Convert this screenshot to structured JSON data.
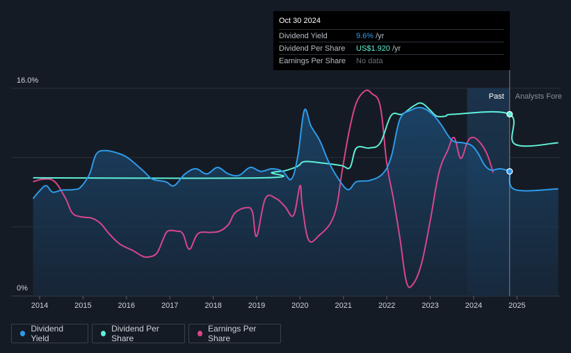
{
  "tooltip": {
    "date": "Oct 30 2024",
    "rows": [
      {
        "label": "Dividend Yield",
        "value": "9.6%",
        "unit": "/yr",
        "color": "#2e9bea"
      },
      {
        "label": "Dividend Per Share",
        "value": "US$1.920",
        "unit": "/yr",
        "color": "#5ff0d8"
      },
      {
        "label": "Earnings Per Share",
        "value": "No data",
        "unit": "",
        "color": "#6a7079"
      }
    ]
  },
  "legend": [
    {
      "label": "Dividend Yield",
      "color": "#2e9bea"
    },
    {
      "label": "Dividend Per Share",
      "color": "#5ff0d8"
    },
    {
      "label": "Earnings Per Share",
      "color": "#d9468c"
    }
  ],
  "chart_data": {
    "type": "line",
    "title": "",
    "xlabel": "",
    "ylabel": "",
    "y_tick_labels": [
      "16.0%",
      "0%"
    ],
    "ylim": [
      0,
      16
    ],
    "xlim": [
      2013.6,
      2025.95
    ],
    "x_ticks": [
      2014,
      2015,
      2016,
      2017,
      2018,
      2019,
      2020,
      2021,
      2022,
      2023,
      2024,
      2025
    ],
    "past_label": "Past",
    "forecast_label": "Analysts Fore",
    "past_region": [
      2023.85,
      2024.83
    ],
    "colors": {
      "yield": "#2e9bea",
      "dps": "#5ff0d8",
      "eps": "#d9468c"
    },
    "series": [
      {
        "name": "Dividend Yield",
        "points": [
          [
            2013.85,
            7.5
          ],
          [
            2014.0,
            8.1
          ],
          [
            2014.15,
            8.5
          ],
          [
            2014.3,
            8.0
          ],
          [
            2014.5,
            8.15
          ],
          [
            2014.8,
            8.2
          ],
          [
            2014.95,
            8.4
          ],
          [
            2015.15,
            9.4
          ],
          [
            2015.3,
            10.9
          ],
          [
            2015.5,
            11.2
          ],
          [
            2015.8,
            11.0
          ],
          [
            2016.05,
            10.6
          ],
          [
            2016.4,
            9.6
          ],
          [
            2016.6,
            9.0
          ],
          [
            2016.9,
            8.8
          ],
          [
            2017.1,
            8.5
          ],
          [
            2017.35,
            9.4
          ],
          [
            2017.6,
            9.8
          ],
          [
            2017.85,
            9.4
          ],
          [
            2018.1,
            9.9
          ],
          [
            2018.35,
            9.4
          ],
          [
            2018.6,
            9.3
          ],
          [
            2018.85,
            9.9
          ],
          [
            2019.1,
            9.6
          ],
          [
            2019.35,
            9.8
          ],
          [
            2019.6,
            9.6
          ],
          [
            2019.8,
            9.0
          ],
          [
            2019.95,
            10.8
          ],
          [
            2020.1,
            14.3
          ],
          [
            2020.25,
            13.1
          ],
          [
            2020.45,
            12.0
          ],
          [
            2020.65,
            10.4
          ],
          [
            2020.85,
            9.2
          ],
          [
            2021.1,
            8.2
          ],
          [
            2021.3,
            8.8
          ],
          [
            2021.6,
            8.9
          ],
          [
            2021.9,
            9.4
          ],
          [
            2022.1,
            10.7
          ],
          [
            2022.3,
            13.6
          ],
          [
            2022.55,
            14.3
          ],
          [
            2022.8,
            14.5
          ],
          [
            2023.05,
            14.0
          ],
          [
            2023.25,
            13.2
          ],
          [
            2023.5,
            12.0
          ],
          [
            2023.75,
            11.8
          ],
          [
            2023.95,
            11.6
          ],
          [
            2024.1,
            11.0
          ],
          [
            2024.25,
            10.1
          ],
          [
            2024.4,
            9.7
          ],
          [
            2024.6,
            9.8
          ],
          [
            2024.75,
            9.7
          ],
          [
            2024.83,
            9.6
          ],
          [
            2024.95,
            8.2
          ],
          [
            2025.95,
            8.25
          ]
        ]
      },
      {
        "name": "Dividend Per Share",
        "points": [
          [
            2013.85,
            9.1
          ],
          [
            2019.15,
            9.1
          ],
          [
            2019.35,
            9.5
          ],
          [
            2019.65,
            9.65
          ],
          [
            2019.95,
            10.0
          ],
          [
            2020.1,
            10.35
          ],
          [
            2020.5,
            10.25
          ],
          [
            2020.95,
            10.05
          ],
          [
            2021.15,
            9.9
          ],
          [
            2021.3,
            11.4
          ],
          [
            2021.6,
            11.4
          ],
          [
            2021.85,
            11.8
          ],
          [
            2022.1,
            13.9
          ],
          [
            2022.35,
            14.0
          ],
          [
            2022.6,
            14.6
          ],
          [
            2022.8,
            14.85
          ],
          [
            2023.0,
            14.3
          ],
          [
            2023.15,
            13.85
          ],
          [
            2023.35,
            13.85
          ],
          [
            2023.55,
            14.0
          ],
          [
            2024.83,
            14.0
          ],
          [
            2024.95,
            11.7
          ],
          [
            2025.95,
            11.8
          ]
        ]
      },
      {
        "name": "Earnings Per Share",
        "points": [
          [
            2013.85,
            8.8
          ],
          [
            2014.1,
            9.0
          ],
          [
            2014.35,
            8.8
          ],
          [
            2014.6,
            7.5
          ],
          [
            2014.75,
            6.4
          ],
          [
            2014.95,
            6.1
          ],
          [
            2015.2,
            6.0
          ],
          [
            2015.4,
            5.6
          ],
          [
            2015.6,
            4.8
          ],
          [
            2015.85,
            4.0
          ],
          [
            2016.15,
            3.5
          ],
          [
            2016.35,
            3.1
          ],
          [
            2016.5,
            3.0
          ],
          [
            2016.7,
            3.3
          ],
          [
            2016.85,
            4.4
          ],
          [
            2016.95,
            5.0
          ],
          [
            2017.15,
            5.0
          ],
          [
            2017.3,
            4.8
          ],
          [
            2017.45,
            3.6
          ],
          [
            2017.65,
            4.8
          ],
          [
            2017.95,
            4.9
          ],
          [
            2018.15,
            5.0
          ],
          [
            2018.35,
            5.5
          ],
          [
            2018.5,
            6.4
          ],
          [
            2018.75,
            6.8
          ],
          [
            2018.9,
            6.5
          ],
          [
            2019.0,
            4.6
          ],
          [
            2019.2,
            7.5
          ],
          [
            2019.45,
            7.5
          ],
          [
            2019.65,
            6.9
          ],
          [
            2019.85,
            6.2
          ],
          [
            2020.0,
            8.5
          ],
          [
            2020.05,
            7.0
          ],
          [
            2020.2,
            4.3
          ],
          [
            2020.45,
            4.7
          ],
          [
            2020.7,
            5.6
          ],
          [
            2020.85,
            7.0
          ],
          [
            2020.95,
            9.2
          ],
          [
            2021.05,
            11.2
          ],
          [
            2021.15,
            13.0
          ],
          [
            2021.3,
            14.9
          ],
          [
            2021.5,
            15.8
          ],
          [
            2021.65,
            15.6
          ],
          [
            2021.85,
            14.6
          ],
          [
            2022.0,
            10.2
          ],
          [
            2022.15,
            7.5
          ],
          [
            2022.3,
            4.5
          ],
          [
            2022.45,
            1.1
          ],
          [
            2022.6,
            0.9
          ],
          [
            2022.8,
            2.5
          ],
          [
            2023.0,
            5.8
          ],
          [
            2023.2,
            9.5
          ],
          [
            2023.4,
            11.2
          ],
          [
            2023.55,
            12.2
          ],
          [
            2023.7,
            10.6
          ],
          [
            2023.85,
            11.8
          ],
          [
            2023.95,
            12.2
          ],
          [
            2024.1,
            12.0
          ],
          [
            2024.3,
            11.0
          ],
          [
            2024.45,
            9.5
          ]
        ]
      }
    ]
  }
}
